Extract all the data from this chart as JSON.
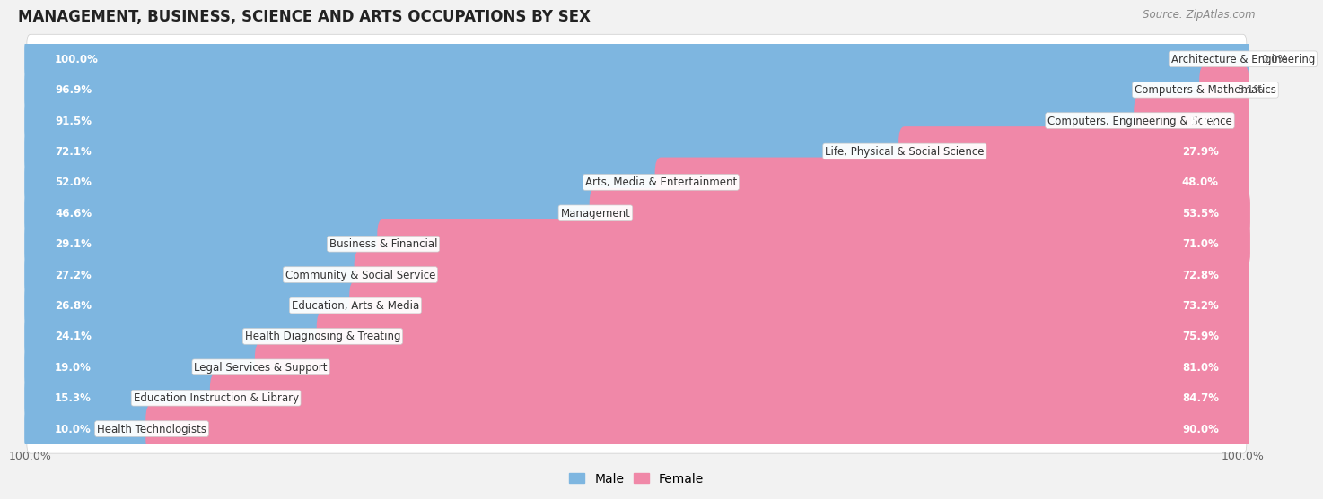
{
  "title": "MANAGEMENT, BUSINESS, SCIENCE AND ARTS OCCUPATIONS BY SEX",
  "source": "Source: ZipAtlas.com",
  "categories": [
    "Architecture & Engineering",
    "Computers & Mathematics",
    "Computers, Engineering & Science",
    "Life, Physical & Social Science",
    "Arts, Media & Entertainment",
    "Management",
    "Business & Financial",
    "Community & Social Service",
    "Education, Arts & Media",
    "Health Diagnosing & Treating",
    "Legal Services & Support",
    "Education Instruction & Library",
    "Health Technologists"
  ],
  "male": [
    100.0,
    96.9,
    91.5,
    72.1,
    52.0,
    46.6,
    29.1,
    27.2,
    26.8,
    24.1,
    19.0,
    15.3,
    10.0
  ],
  "female": [
    0.0,
    3.1,
    8.5,
    27.9,
    48.0,
    53.5,
    71.0,
    72.8,
    73.2,
    75.9,
    81.0,
    84.7,
    90.0
  ],
  "male_color": "#7EB6E0",
  "female_color": "#F088A8",
  "bg_color": "#F2F2F2",
  "row_light": "#FFFFFF",
  "row_dark": "#EFEFEF",
  "title_fontsize": 12,
  "label_fontsize": 8.5,
  "pct_fontsize": 8.5,
  "legend_fontsize": 10,
  "bar_height": 0.62
}
